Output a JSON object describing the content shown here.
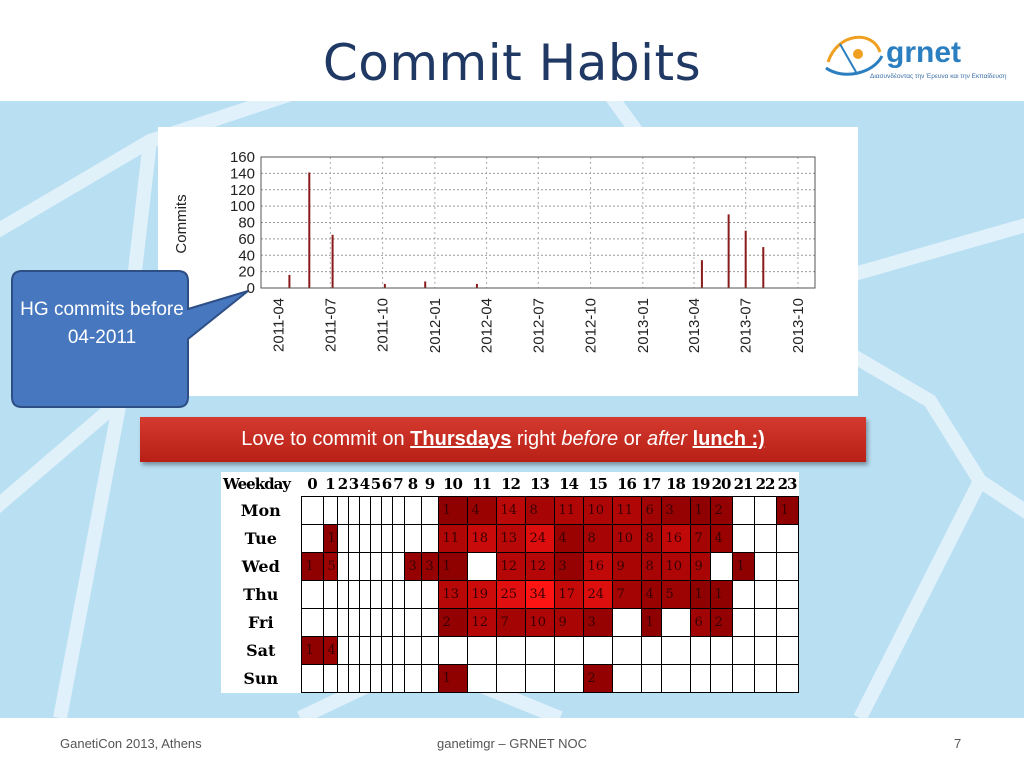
{
  "slide": {
    "title": "Commit Habits",
    "logo_text": "grnet",
    "logo_tagline": "Διασυνδέοντας την Έρευνα και την Εκπαίδευση"
  },
  "callout": {
    "text": "HG commits before 04-2011"
  },
  "banner": {
    "pre": "Love to commit on ",
    "day": "Thursdays",
    "mid1": " right ",
    "before": "before",
    "mid2": " or ",
    "after": "after",
    "space": " ",
    "lunch": "lunch :)"
  },
  "chart_data": {
    "type": "bar",
    "ylabel": "Commits",
    "ylim": [
      0,
      160
    ],
    "yticks": [
      0,
      20,
      40,
      60,
      80,
      100,
      120,
      140,
      160
    ],
    "xticks": [
      "2011-04",
      "2011-07",
      "2011-10",
      "2012-01",
      "2012-04",
      "2012-07",
      "2012-10",
      "2013-01",
      "2013-04",
      "2013-07",
      "2013-10"
    ],
    "grid": true,
    "bar_color": "#8b1a1a",
    "points": [
      {
        "date": "2011-04-20",
        "value": 16
      },
      {
        "date": "2011-05-25",
        "value": 141
      },
      {
        "date": "2011-07-05",
        "value": 65
      },
      {
        "date": "2011-10-05",
        "value": 5
      },
      {
        "date": "2011-12-15",
        "value": 8
      },
      {
        "date": "2012-03-15",
        "value": 5
      },
      {
        "date": "2013-04-15",
        "value": 34
      },
      {
        "date": "2013-06-01",
        "value": 90
      },
      {
        "date": "2013-07-01",
        "value": 70
      },
      {
        "date": "2013-08-01",
        "value": 50
      }
    ]
  },
  "heatmap": {
    "header_label": "Weekday",
    "hours": [
      "0",
      "1",
      "2",
      "3",
      "4",
      "5",
      "6",
      "7",
      "8",
      "9",
      "10",
      "11",
      "12",
      "13",
      "14",
      "15",
      "16",
      "17",
      "18",
      "19",
      "20",
      "21",
      "22",
      "23"
    ],
    "color_max": 34,
    "rows": [
      {
        "day": "Mon",
        "values": [
          null,
          null,
          null,
          null,
          null,
          null,
          null,
          null,
          null,
          null,
          1,
          4,
          14,
          8,
          11,
          10,
          11,
          6,
          3,
          1,
          2,
          null,
          null,
          1
        ]
      },
      {
        "day": "Tue",
        "values": [
          null,
          1,
          null,
          null,
          null,
          null,
          null,
          null,
          null,
          null,
          11,
          18,
          13,
          24,
          4,
          8,
          10,
          8,
          16,
          7,
          4,
          null,
          null,
          null
        ]
      },
      {
        "day": "Wed",
        "values": [
          1,
          5,
          null,
          null,
          null,
          null,
          null,
          null,
          3,
          3,
          1,
          null,
          12,
          12,
          3,
          16,
          9,
          8,
          10,
          9,
          null,
          1,
          null,
          null
        ]
      },
      {
        "day": "Thu",
        "values": [
          null,
          null,
          null,
          null,
          null,
          null,
          null,
          null,
          null,
          null,
          13,
          19,
          25,
          34,
          17,
          24,
          7,
          4,
          5,
          1,
          1,
          null,
          null,
          null
        ]
      },
      {
        "day": "Fri",
        "values": [
          null,
          null,
          null,
          null,
          null,
          null,
          null,
          null,
          null,
          null,
          2,
          12,
          7,
          10,
          9,
          3,
          null,
          1,
          null,
          6,
          2,
          null,
          null,
          null
        ]
      },
      {
        "day": "Sat",
        "values": [
          1,
          4,
          null,
          null,
          null,
          null,
          null,
          null,
          null,
          null,
          null,
          null,
          null,
          null,
          null,
          null,
          null,
          null,
          null,
          null,
          null,
          null,
          null,
          null
        ]
      },
      {
        "day": "Sun",
        "values": [
          null,
          null,
          null,
          null,
          null,
          null,
          null,
          null,
          null,
          null,
          1,
          null,
          null,
          null,
          null,
          2,
          null,
          null,
          null,
          null,
          null,
          null,
          null,
          null
        ]
      }
    ]
  },
  "footer": {
    "left": "GanetiCon 2013, Athens",
    "center": "ganetimgr – GRNET NOC",
    "page": "7"
  }
}
